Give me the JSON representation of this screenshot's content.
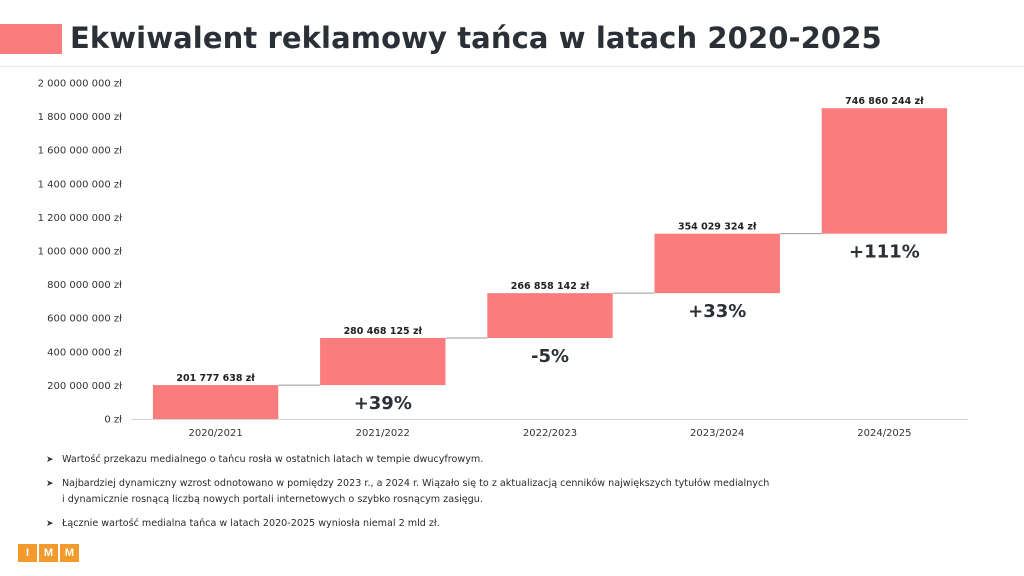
{
  "page": {
    "title": "Ekwiwalent reklamowy tańca w latach 2020-2025"
  },
  "colors": {
    "bar": "#fb7c7c",
    "accent": "#fb7c7c",
    "logo": "#f39a2c",
    "text": "#2b2f36"
  },
  "chart_data": {
    "type": "waterfall",
    "categories": [
      "2020/2021",
      "2021/2022",
      "2022/2023",
      "2023/2024",
      "2024/2025"
    ],
    "values": [
      201777638,
      280468125,
      266858142,
      354029324,
      746860244
    ],
    "value_labels": [
      "201 777 638 zł",
      "280 468 125 zł",
      "266 858 142 zł",
      "354 029 324 zł",
      "746 860 244 zł"
    ],
    "change_labels": [
      "",
      "+39%",
      "-5%",
      "+33%",
      "+111%"
    ],
    "yticks": [
      "0 zł",
      "200 000 000 zł",
      "400 000 000 zł",
      "600 000 000 zł",
      "800 000 000 zł",
      "1 000 000 000 zł",
      "1 200 000 000 zł",
      "1 400 000 000 zł",
      "1 600 000 000 zł",
      "1 800 000 000 zł",
      "2 000 000 000 zł"
    ],
    "ylim": [
      0,
      2000000000
    ],
    "grid": false,
    "legend": "none"
  },
  "bullets": [
    "Wartość przekazu medialnego o tańcu rosła w ostatnich latach w tempie dwucyfrowym.",
    "Najbardziej dynamiczny wzrost odnotowano w pomiędzy 2023 r., a 2024 r. Wiązało się to z aktualizacją cenników największych tytułów medialnych",
    "i dynamicznie rosnącą liczbą nowych portali internetowych o szybko rosnącym zasięgu.",
    "Łącznie wartość medialna tańca w latach 2020-2025 wyniosła niemal 2 mld zł."
  ],
  "bullet_marker": "➤",
  "logo": {
    "letters": [
      "I",
      "M",
      "M"
    ]
  }
}
